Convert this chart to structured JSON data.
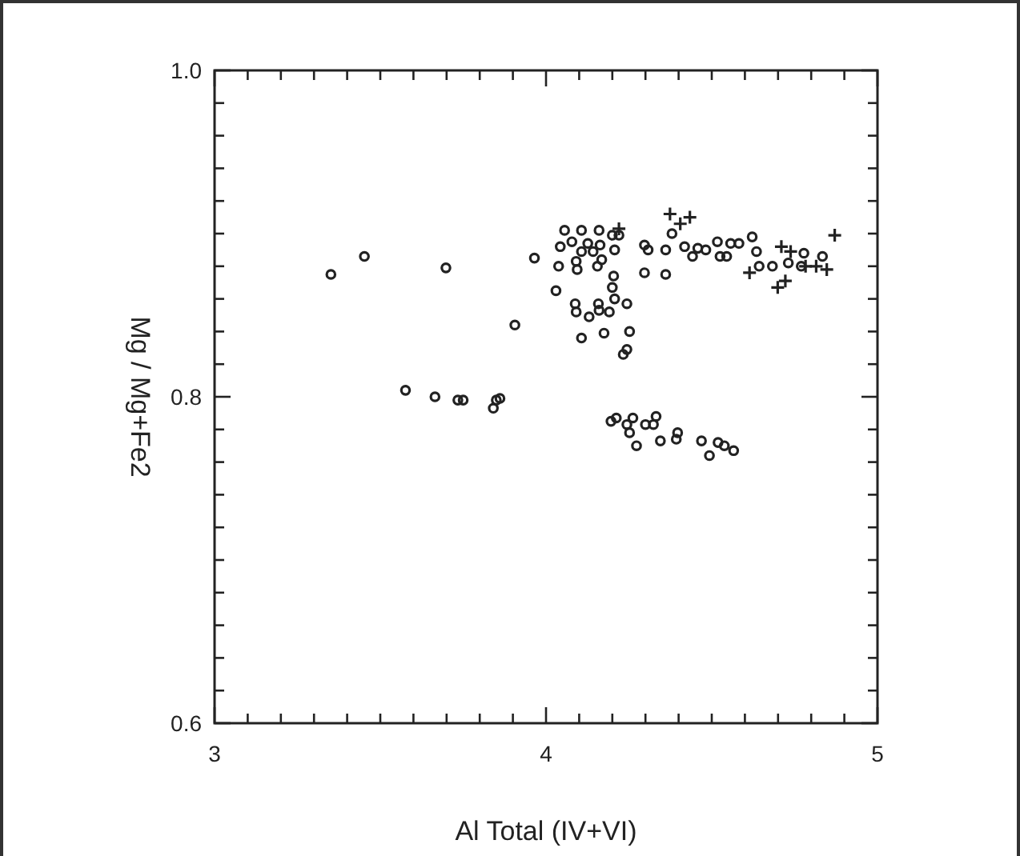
{
  "chart_data": {
    "type": "scatter",
    "xlabel": "Al Total (IV+VI)",
    "ylabel": "Mg / Mg+Fe2",
    "xlim": [
      3,
      5
    ],
    "ylim": [
      0.6,
      1.0
    ],
    "xticks": [
      3,
      {
        "value": 3.1,
        "label": null
      },
      {
        "value": 3.2,
        "label": null
      },
      {
        "value": 3.3,
        "label": null
      },
      {
        "value": 3.4,
        "label": null
      },
      {
        "value": 3.5,
        "label": null
      },
      {
        "value": 3.6,
        "label": null
      },
      {
        "value": 3.7,
        "label": null
      },
      {
        "value": 3.8,
        "label": null
      },
      {
        "value": 3.9,
        "label": null
      },
      4,
      {
        "value": 4.1,
        "label": null
      },
      {
        "value": 4.2,
        "label": null
      },
      {
        "value": 4.3,
        "label": null
      },
      {
        "value": 4.4,
        "label": null
      },
      {
        "value": 4.5,
        "label": null
      },
      {
        "value": 4.6,
        "label": null
      },
      {
        "value": 4.7,
        "label": null
      },
      {
        "value": 4.8,
        "label": null
      },
      {
        "value": 4.9,
        "label": null
      },
      5
    ],
    "yticks": [
      0.6,
      {
        "value": 0.62,
        "label": null
      },
      {
        "value": 0.64,
        "label": null
      },
      {
        "value": 0.66,
        "label": null
      },
      {
        "value": 0.68,
        "label": null
      },
      {
        "value": 0.7,
        "label": null
      },
      {
        "value": 0.72,
        "label": null
      },
      {
        "value": 0.74,
        "label": null
      },
      {
        "value": 0.76,
        "label": null
      },
      {
        "value": 0.78,
        "label": null
      },
      0.8,
      {
        "value": 0.82,
        "label": null
      },
      {
        "value": 0.84,
        "label": null
      },
      {
        "value": 0.86,
        "label": null
      },
      {
        "value": 0.88,
        "label": null
      },
      {
        "value": 0.9,
        "label": null
      },
      {
        "value": 0.92,
        "label": null
      },
      {
        "value": 0.94,
        "label": null
      },
      {
        "value": 0.96,
        "label": null
      },
      {
        "value": 0.98,
        "label": null
      },
      {
        "value": 1,
        "label": "1.0"
      }
    ],
    "grid": false,
    "series": [
      {
        "color": "#222222",
        "marker": "circle",
        "x": [
          3.351,
          3.452,
          3.698,
          3.965,
          3.906,
          3.576,
          3.665,
          3.734,
          3.75,
          3.841,
          3.85,
          3.861,
          4.03,
          4.038,
          4.043,
          4.056,
          4.107,
          4.16,
          4.078,
          4.091,
          4.094,
          4.107,
          4.126,
          4.142,
          4.155,
          4.168,
          4.163,
          4.2,
          4.22,
          4.207,
          4.204,
          4.2,
          4.207,
          4.088,
          4.091,
          4.13,
          4.158,
          4.16,
          4.191,
          4.244,
          4.107,
          4.175,
          4.252,
          4.244,
          4.233,
          4.297,
          4.308,
          4.297,
          4.361,
          4.361,
          4.38,
          4.418,
          4.442,
          4.458,
          4.482,
          4.517,
          4.525,
          4.545,
          4.557,
          4.582,
          4.622,
          4.635,
          4.643,
          4.683,
          4.731,
          4.778,
          4.77,
          4.834,
          4.196,
          4.212,
          4.244,
          4.262,
          4.252,
          4.273,
          4.3,
          4.332,
          4.324,
          4.345,
          4.397,
          4.393,
          4.469,
          4.493,
          4.519,
          4.538,
          4.566
        ],
        "values": [
          0.875,
          0.886,
          0.879,
          0.885,
          0.844,
          0.804,
          0.8,
          0.798,
          0.798,
          0.793,
          0.798,
          0.799,
          0.865,
          0.88,
          0.892,
          0.902,
          0.902,
          0.902,
          0.895,
          0.883,
          0.878,
          0.889,
          0.894,
          0.889,
          0.88,
          0.884,
          0.893,
          0.899,
          0.899,
          0.89,
          0.874,
          0.867,
          0.86,
          0.857,
          0.852,
          0.849,
          0.857,
          0.853,
          0.852,
          0.857,
          0.836,
          0.839,
          0.84,
          0.829,
          0.826,
          0.893,
          0.89,
          0.876,
          0.875,
          0.89,
          0.9,
          0.892,
          0.886,
          0.891,
          0.89,
          0.895,
          0.886,
          0.886,
          0.894,
          0.894,
          0.898,
          0.889,
          0.88,
          0.88,
          0.882,
          0.888,
          0.88,
          0.886,
          0.785,
          0.787,
          0.783,
          0.787,
          0.778,
          0.77,
          0.783,
          0.788,
          0.783,
          0.773,
          0.778,
          0.774,
          0.773,
          0.764,
          0.772,
          0.77,
          0.767
        ]
      },
      {
        "color": "#222222",
        "marker": "cross",
        "x": [
          4.374,
          4.405,
          4.434,
          4.22,
          4.614,
          4.71,
          4.738,
          4.699,
          4.722,
          4.783,
          4.815,
          4.847,
          4.871
        ],
        "values": [
          0.912,
          0.906,
          0.91,
          0.903,
          0.876,
          0.892,
          0.889,
          0.867,
          0.871,
          0.88,
          0.88,
          0.878,
          0.899
        ]
      }
    ]
  }
}
